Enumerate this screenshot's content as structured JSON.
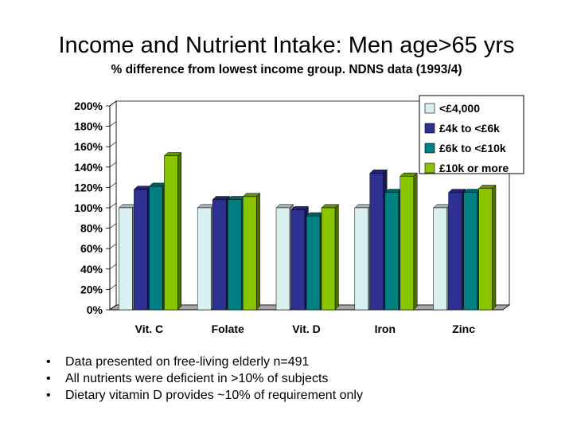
{
  "slide": {
    "title": "Income and Nutrient Intake: Men age>65 yrs",
    "subtitle": "% difference from lowest income group. NDNS data (1993/4)",
    "bullet_glyph": "•",
    "bullets": [
      "Data presented on free-living elderly n=491",
      "All nutrients were deficient in >10% of subjects",
      "Dietary vitamin D provides ~10% of requirement only"
    ]
  },
  "chart_data": {
    "type": "bar",
    "title": "",
    "xlabel": "",
    "ylabel": "",
    "categories": [
      "Vit. C",
      "Folate",
      "Vit. D",
      "Iron",
      "Zinc"
    ],
    "ylim": [
      0,
      200
    ],
    "yticks": [
      "0%",
      "20%",
      "40%",
      "60%",
      "80%",
      "100%",
      "120%",
      "140%",
      "160%",
      "180%",
      "200%"
    ],
    "grid": false,
    "legend_position": "top-right",
    "series": [
      {
        "name": "<£4,000",
        "color": "#d9f0f0",
        "values": [
          100,
          100,
          100,
          100,
          100
        ]
      },
      {
        "name": "£4k to <£6k",
        "color": "#2e3192",
        "values": [
          118,
          108,
          98,
          134,
          115
        ]
      },
      {
        "name": "£6k to <£10k",
        "color": "#008080",
        "values": [
          121,
          108,
          92,
          115,
          115
        ]
      },
      {
        "name": "£10k or more",
        "color": "#88c400",
        "values": [
          151,
          111,
          100,
          131,
          119
        ]
      }
    ]
  }
}
